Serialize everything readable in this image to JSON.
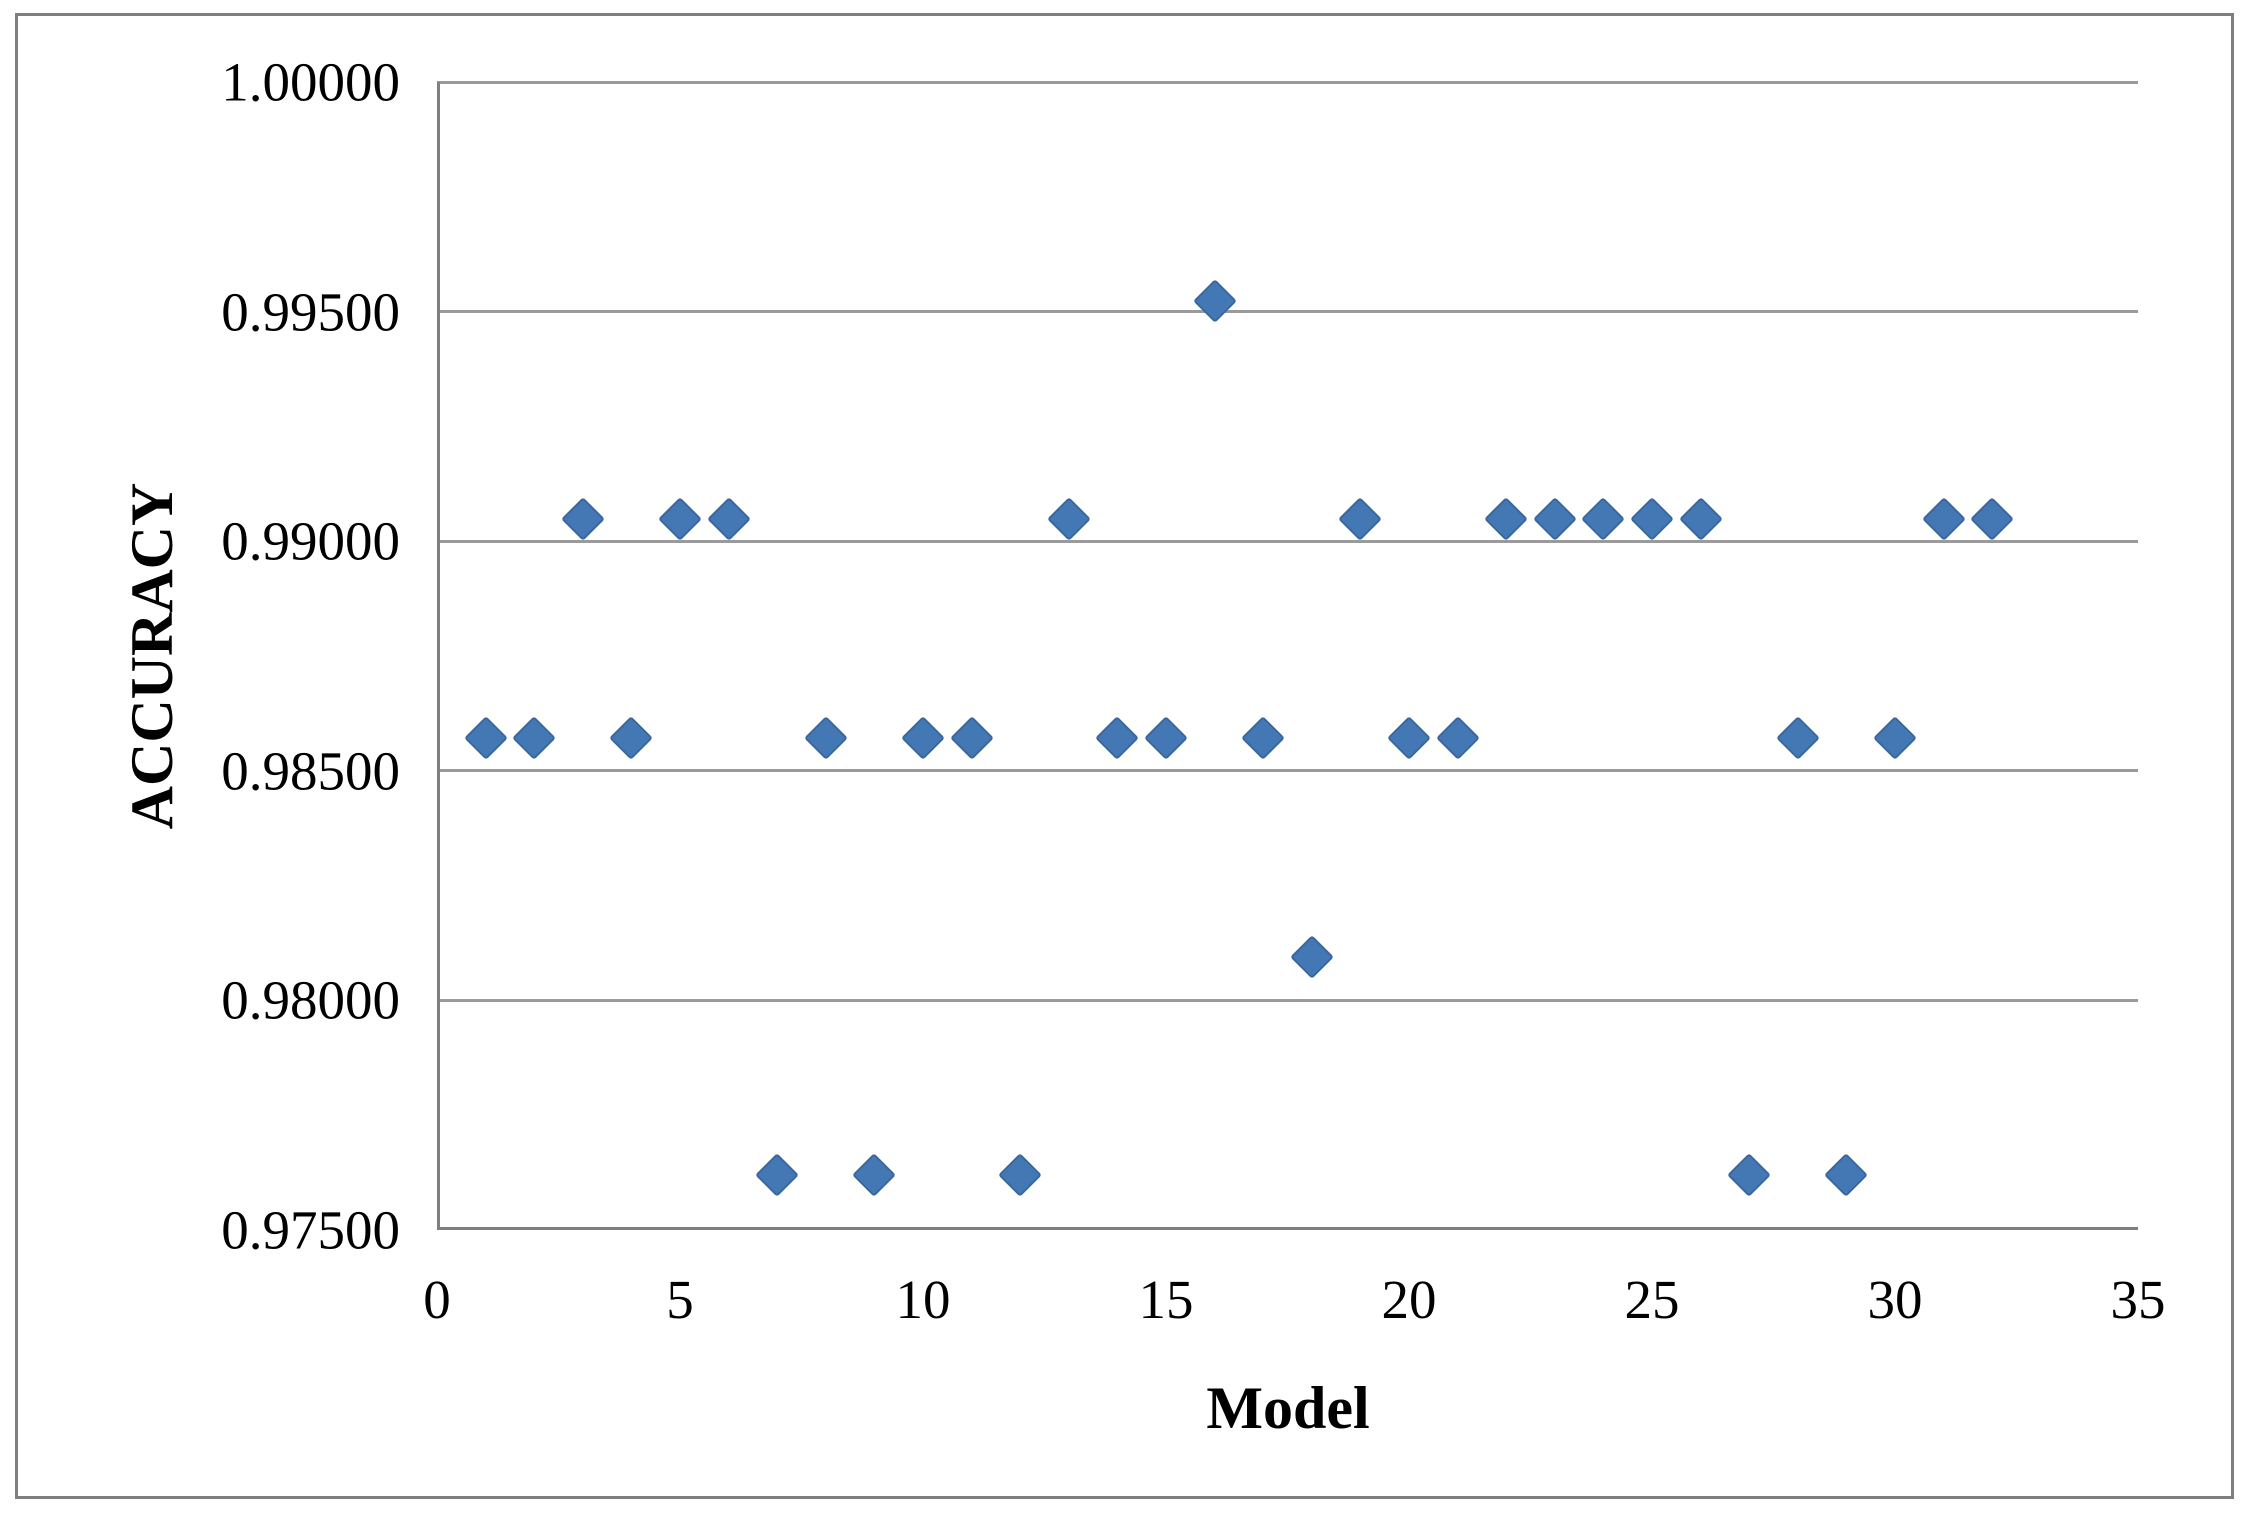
{
  "chart_data": {
    "type": "scatter",
    "title": "",
    "xlabel": "Model",
    "ylabel": "ACCURACY",
    "xlim": [
      0,
      35
    ],
    "ylim": [
      0.975,
      1.0
    ],
    "x_ticks": [
      "0",
      "5",
      "10",
      "15",
      "20",
      "25",
      "30",
      "35"
    ],
    "x_tick_values": [
      0,
      5,
      10,
      15,
      20,
      25,
      30,
      35
    ],
    "y_ticks": [
      "1.00000",
      "0.99500",
      "0.99000",
      "0.98500",
      "0.98000",
      "0.97500"
    ],
    "y_tick_values": [
      1.0,
      0.995,
      0.99,
      0.985,
      0.98,
      0.975
    ],
    "grid": "horizontal",
    "legend": "none",
    "marker": "diamond",
    "x": [
      1,
      2,
      3,
      4,
      5,
      6,
      7,
      8,
      9,
      10,
      11,
      12,
      13,
      14,
      15,
      16,
      17,
      18,
      19,
      20,
      21,
      22,
      23,
      24,
      25,
      26,
      27,
      28,
      29,
      30,
      31,
      32
    ],
    "y": [
      0.98571,
      0.98571,
      0.99048,
      0.98571,
      0.99048,
      0.99048,
      0.97619,
      0.98571,
      0.97619,
      0.98571,
      0.98571,
      0.97619,
      0.99048,
      0.98571,
      0.98571,
      0.99524,
      0.98571,
      0.98095,
      0.99048,
      0.98571,
      0.98571,
      0.99048,
      0.99048,
      0.99048,
      0.99048,
      0.99048,
      0.97619,
      0.98571,
      0.97619,
      0.98571,
      0.99048,
      0.99048
    ]
  },
  "colors": {
    "marker_fill": "#4478b5",
    "marker_edge": "#39679f",
    "gridline": "#9a9a9a",
    "axis_line": "#7f7f7f",
    "figure_border": "#7f7f7f",
    "background": "#ffffff",
    "text": "#000000"
  }
}
